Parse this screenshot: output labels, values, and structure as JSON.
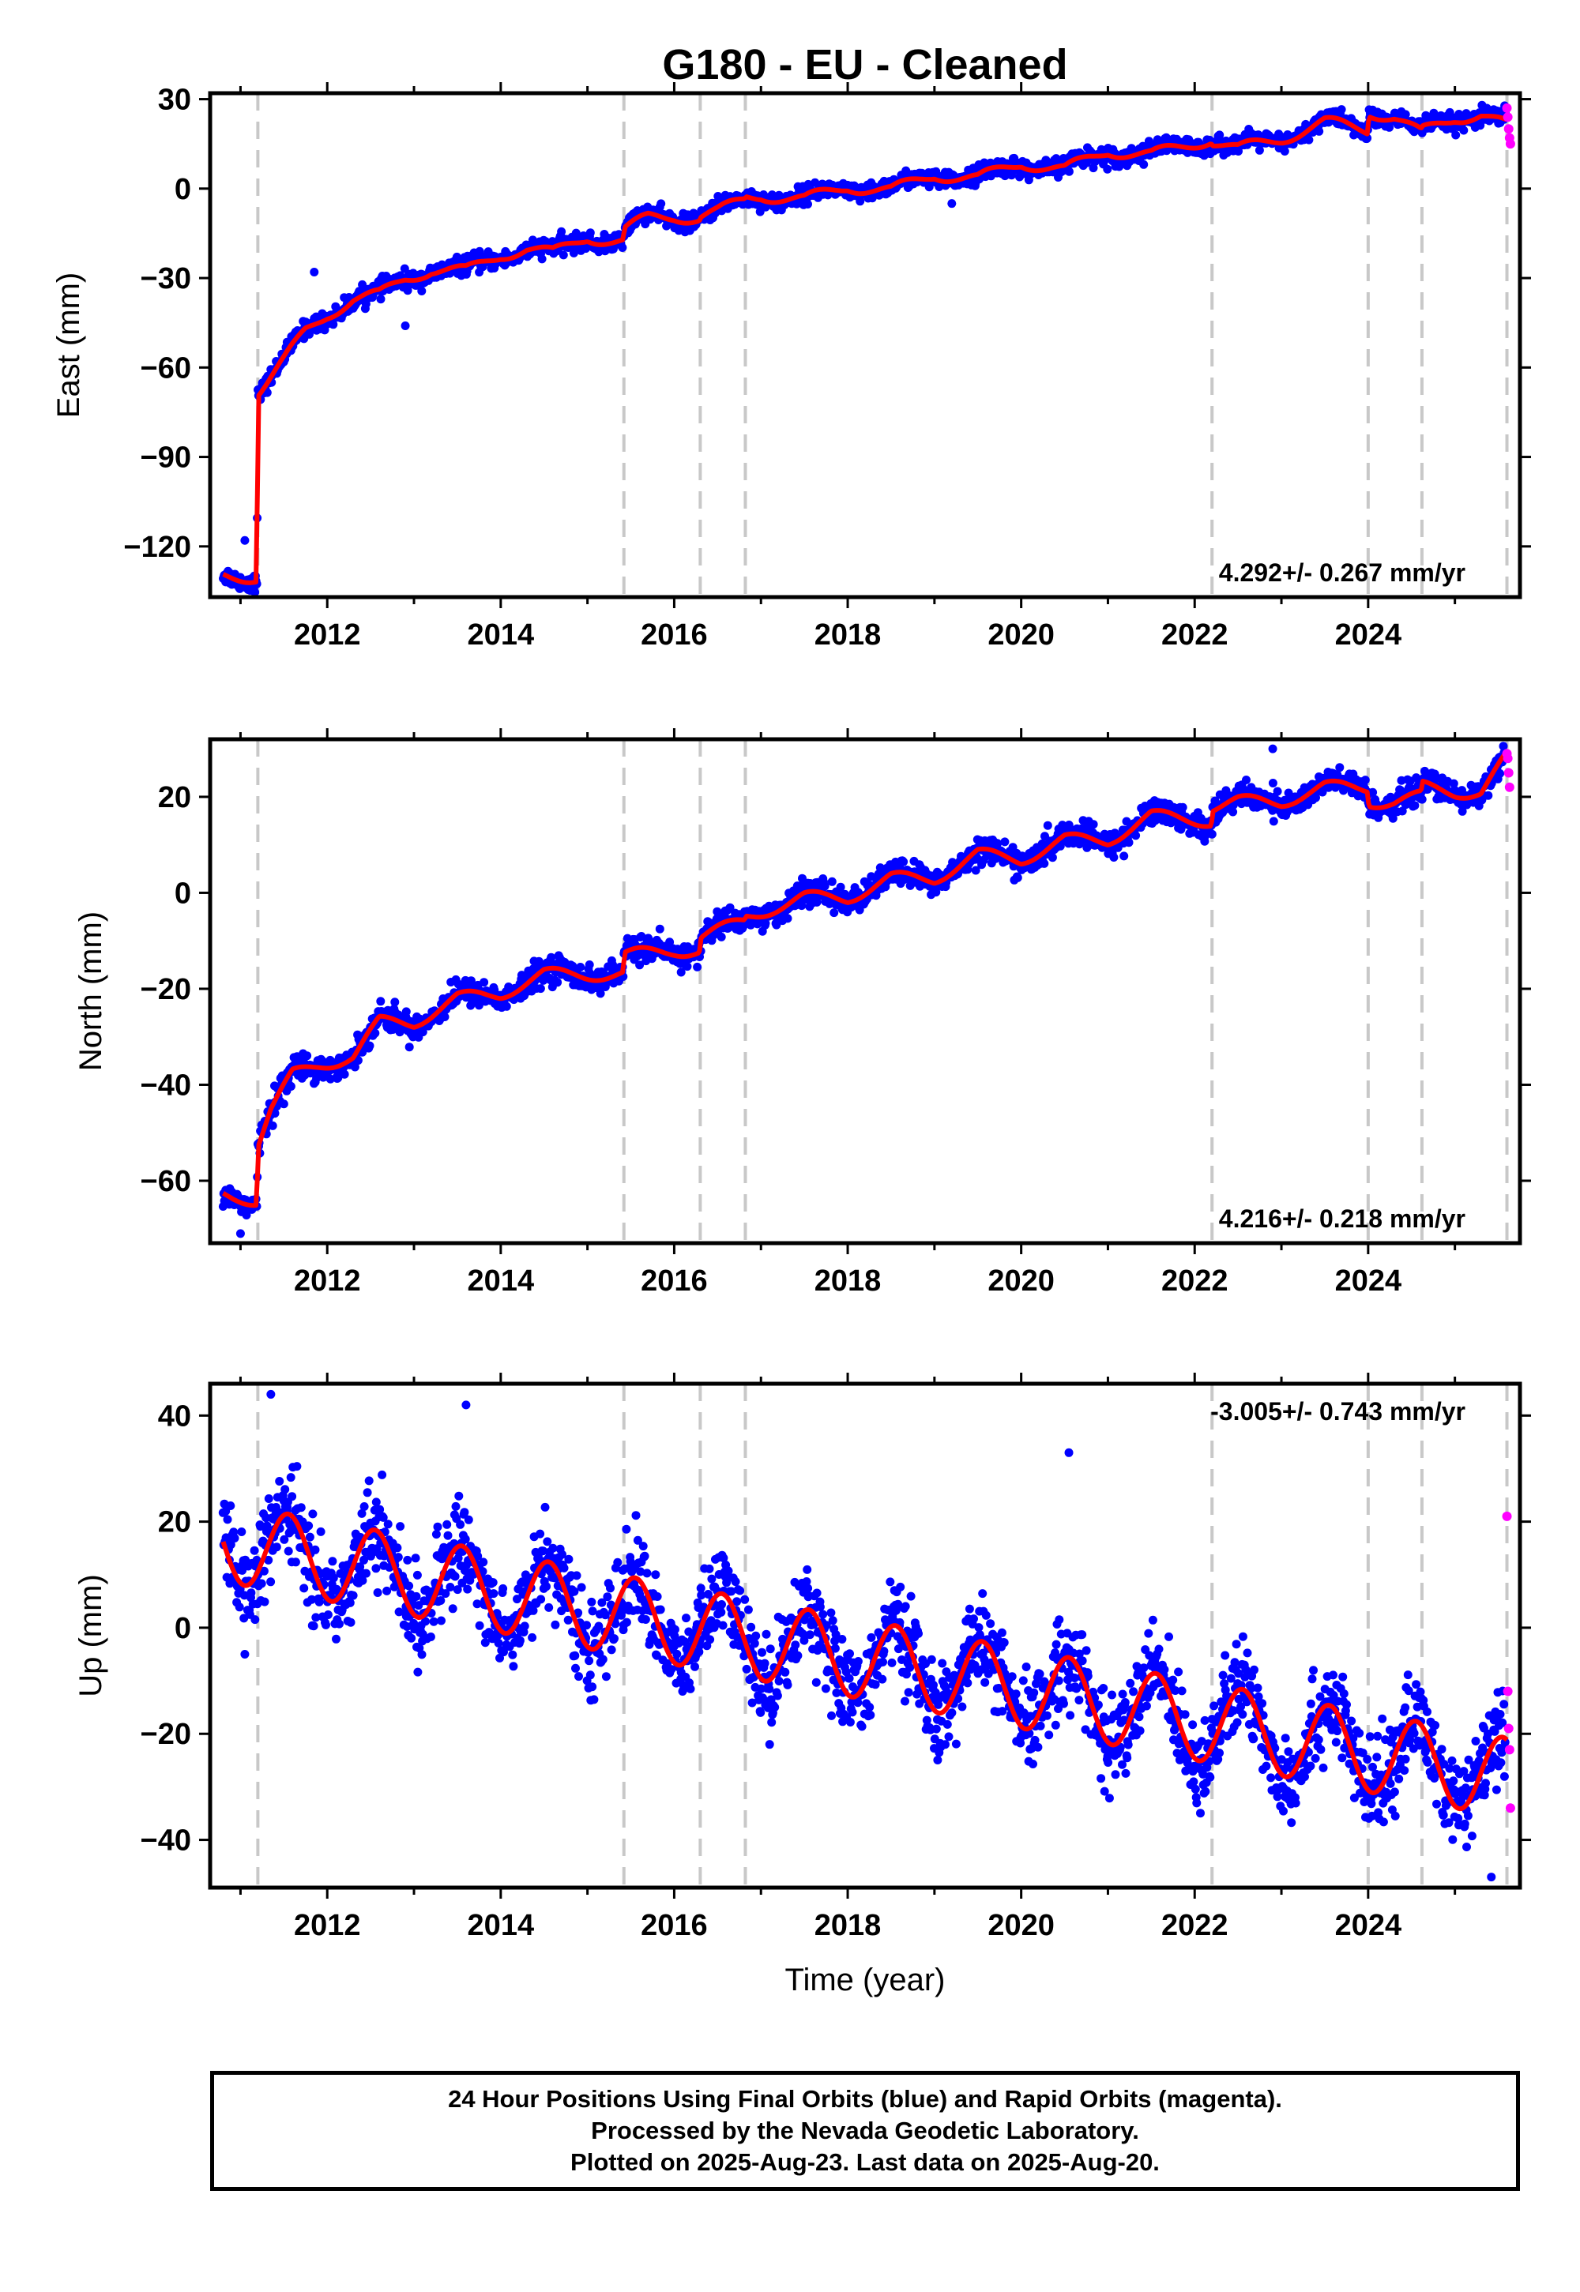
{
  "title": "G180  - EU - Cleaned",
  "footer": {
    "line1": "24 Hour Positions Using Final Orbits (blue) and Rapid Orbits (magenta).",
    "line2": "Processed by the Nevada Geodetic Laboratory.",
    "line3": "Plotted on 2025-Aug-23. Last data on 2025-Aug-20."
  },
  "chart_data": [
    {
      "type": "scatter",
      "component": "east",
      "ylabel": "East (mm)",
      "xlabel": "",
      "xlim": [
        2010.65,
        2025.75
      ],
      "ylim": [
        -137,
        32
      ],
      "xticks": [
        2012,
        2014,
        2016,
        2018,
        2020,
        2022,
        2024
      ],
      "yticks": [
        30,
        0,
        -30,
        -60,
        -90,
        -120
      ],
      "rate_label": "4.292+/- 0.267 mm/yr",
      "rate_label_position": "bottom-right",
      "breaks": [
        2011.2,
        2015.42,
        2016.3,
        2016.82,
        2022.2,
        2024.0,
        2024.62,
        2025.6
      ],
      "model": {
        "name": "model fit",
        "color": "#ff0000",
        "x": [
          2010.8,
          2011.19,
          2011.2,
          2011.3,
          2011.5,
          2011.75,
          2012.0,
          2012.3,
          2012.6,
          2012.9,
          2013.2,
          2013.6,
          2014.0,
          2014.3,
          2014.6,
          2015.0,
          2015.41,
          2015.43,
          2015.7,
          2016.0,
          2016.29,
          2016.31,
          2016.5,
          2016.81,
          2016.83,
          2017.0,
          2017.5,
          2018.0,
          2018.5,
          2019.0,
          2019.5,
          2020.0,
          2020.5,
          2021.0,
          2021.5,
          2022.19,
          2022.21,
          2022.5,
          2023.0,
          2023.5,
          2023.99,
          2024.01,
          2024.3,
          2024.61,
          2024.63,
          2025.0,
          2025.3,
          2025.59
        ],
        "y": [
          -130,
          -130,
          -68,
          -65,
          -58,
          -48,
          -42,
          -37,
          -36,
          -30,
          -27,
          -28,
          -22,
          -20,
          -22,
          -16,
          -18,
          -14,
          -10,
          -9,
          -10,
          -9,
          -8,
          -4,
          -3,
          -2,
          -4,
          1,
          -1,
          5,
          3,
          9,
          6,
          13,
          11,
          17,
          16,
          13,
          17,
          22,
          20,
          26,
          24,
          18,
          19,
          24,
          25,
          21
        ],
        "seasonal_amp": 2.2
      },
      "series": [
        {
          "name": "Final Orbits (blue)",
          "color": "#0000ff",
          "x_start": 2010.8,
          "x_end": 2025.58,
          "scatter_mm": 1.4,
          "outliers": [
            {
              "x": 2011.05,
              "y": -118
            },
            {
              "x": 2011.85,
              "y": -28
            },
            {
              "x": 2012.9,
              "y": -46
            },
            {
              "x": 2019.2,
              "y": -5
            }
          ]
        },
        {
          "name": "Rapid Orbits (magenta)",
          "color": "#ff00ff",
          "x": [
            2025.6,
            2025.61,
            2025.62,
            2025.63,
            2025.64
          ],
          "y": [
            27,
            24,
            20,
            17,
            15
          ]
        }
      ]
    },
    {
      "type": "scatter",
      "component": "north",
      "ylabel": "North (mm)",
      "xlabel": "",
      "xlim": [
        2010.65,
        2025.75
      ],
      "ylim": [
        -73,
        32
      ],
      "xticks": [
        2012,
        2014,
        2016,
        2018,
        2020,
        2022,
        2024
      ],
      "yticks": [
        20,
        0,
        -20,
        -40,
        -60
      ],
      "rate_label": "4.216+/- 0.218 mm/yr",
      "rate_label_position": "bottom-right",
      "breaks": [
        2011.2,
        2015.42,
        2016.3,
        2016.82,
        2022.2,
        2024.0,
        2024.62,
        2025.6
      ],
      "model": {
        "name": "model fit",
        "color": "#ff0000",
        "x": [
          2010.8,
          2011.19,
          2011.2,
          2011.35,
          2011.6,
          2011.9,
          2012.3,
          2012.6,
          2013.0,
          2013.5,
          2014.0,
          2014.5,
          2015.0,
          2015.41,
          2015.43,
          2016.0,
          2016.29,
          2016.31,
          2016.81,
          2016.83,
          2017.0,
          2017.5,
          2018.0,
          2018.5,
          2019.0,
          2019.5,
          2020.0,
          2020.5,
          2021.0,
          2021.5,
          2022.19,
          2022.21,
          2022.5,
          2023.0,
          2023.5,
          2023.99,
          2024.01,
          2024.3,
          2024.61,
          2024.63,
          2025.0,
          2025.3,
          2025.59
        ],
        "y": [
          -63,
          -64,
          -52,
          -45,
          -38,
          -36,
          -34,
          -27,
          -27,
          -22,
          -21,
          -17,
          -17,
          -17,
          -13,
          -12,
          -12,
          -9,
          -6,
          -5,
          -4,
          -1,
          -1,
          3,
          3,
          8,
          7,
          11,
          11,
          16,
          15,
          18,
          19,
          19,
          22,
          22,
          19,
          19,
          20,
          22,
          21,
          21,
          28
        ],
        "seasonal_amp": 1.3
      },
      "series": [
        {
          "name": "Final Orbits (blue)",
          "color": "#0000ff",
          "x_start": 2010.8,
          "x_end": 2025.58,
          "scatter_mm": 1.3,
          "outliers": [
            {
              "x": 2011.0,
              "y": -71
            },
            {
              "x": 2022.9,
              "y": 30
            },
            {
              "x": 2011.5,
              "y": -44
            }
          ]
        },
        {
          "name": "Rapid Orbits (magenta)",
          "color": "#ff00ff",
          "x": [
            2025.6,
            2025.61,
            2025.62,
            2025.63
          ],
          "y": [
            29,
            28,
            25,
            22
          ]
        }
      ]
    },
    {
      "type": "scatter",
      "component": "up",
      "ylabel": "Up (mm)",
      "xlabel": "Time (year)",
      "xlim": [
        2010.65,
        2025.75
      ],
      "ylim": [
        -49,
        46
      ],
      "xticks": [
        2012,
        2014,
        2016,
        2018,
        2020,
        2022,
        2024
      ],
      "yticks": [
        40,
        20,
        0,
        -20,
        -40
      ],
      "rate_label": "-3.005+/- 0.743 mm/yr",
      "rate_label_position": "top-right",
      "breaks": [
        2011.2,
        2015.42,
        2016.3,
        2016.82,
        2022.2,
        2024.0,
        2024.62,
        2025.6
      ],
      "model": {
        "name": "model fit",
        "color": "#ff0000",
        "trend": {
          "x0": 2010.8,
          "y0": 16.2,
          "rate": -3.005
        },
        "seasonal_amp": 7.5,
        "seasonal_peak_fraction": 0.55
      },
      "series": [
        {
          "name": "Final Orbits (blue)",
          "color": "#0000ff",
          "x_start": 2010.8,
          "x_end": 2025.58,
          "scatter_mm": 4.2,
          "outliers": [
            {
              "x": 2011.35,
              "y": 44
            },
            {
              "x": 2013.6,
              "y": 42
            },
            {
              "x": 2017.1,
              "y": -22
            },
            {
              "x": 2025.42,
              "y": -47
            },
            {
              "x": 2011.05,
              "y": -5
            },
            {
              "x": 2020.55,
              "y": 33
            }
          ]
        },
        {
          "name": "Rapid Orbits (magenta)",
          "color": "#ff00ff",
          "x": [
            2025.6,
            2025.61,
            2025.62,
            2025.63,
            2025.64
          ],
          "y": [
            21,
            -12,
            -19,
            -23,
            -34
          ]
        }
      ]
    }
  ]
}
